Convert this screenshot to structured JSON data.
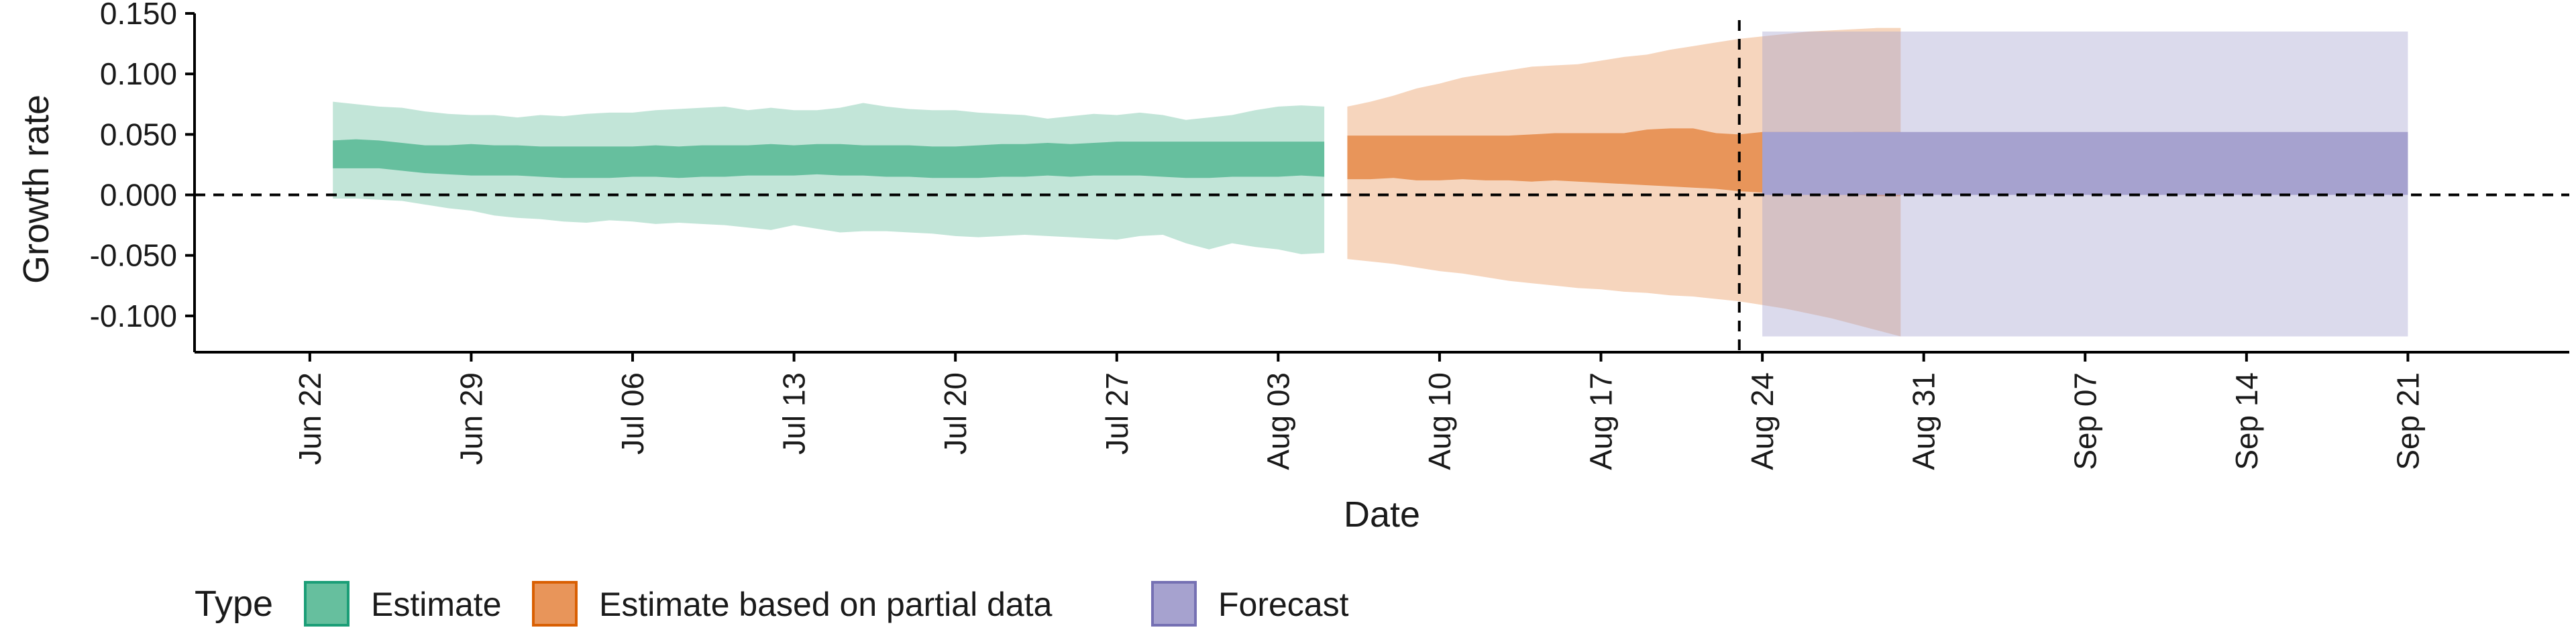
{
  "chart_data": {
    "type": "area",
    "xlabel": "Date",
    "ylabel": "Growth rate",
    "ylim": [
      -0.13,
      0.15
    ],
    "y_ticks": [
      "0.150",
      "0.100",
      "0.050",
      "0.000",
      "-0.050",
      "-0.100"
    ],
    "y_tick_values": [
      0.15,
      0.1,
      0.05,
      0.0,
      -0.05,
      -0.1
    ],
    "x_ticks": [
      "Jun 22",
      "Jun 29",
      "Jul 06",
      "Jul 13",
      "Jul 20",
      "Jul 27",
      "Aug 03",
      "Aug 10",
      "Aug 17",
      "Aug 24",
      "Aug 31",
      "Sep 07",
      "Sep 14",
      "Sep 21"
    ],
    "x_tick_dates": [
      "2020-06-22",
      "2020-06-29",
      "2020-07-06",
      "2020-07-13",
      "2020-07-20",
      "2020-07-27",
      "2020-08-03",
      "2020-08-10",
      "2020-08-17",
      "2020-08-24",
      "2020-08-31",
      "2020-09-07",
      "2020-09-14",
      "2020-09-21"
    ],
    "xlim": [
      "2020-06-17",
      "2020-09-28"
    ],
    "reference_line_y": 0,
    "forecast_start_line": "2020-08-23",
    "grid": false,
    "legend": {
      "position": "bottom-left",
      "title": "Type",
      "entries": [
        {
          "label": "Estimate",
          "color": "#66bf9e",
          "border": "#1b9e77"
        },
        {
          "label": "Estimate based on partial data",
          "color": "#e8955a",
          "border": "#d95f02"
        },
        {
          "label": "Forecast",
          "color": "#a6a2cf",
          "border": "#7570b3"
        }
      ]
    },
    "series": [
      {
        "name": "Estimate",
        "color": "#66bf9e",
        "start_date": "2020-06-23",
        "inner_upper": [
          0.045,
          0.046,
          0.045,
          0.043,
          0.041,
          0.041,
          0.042,
          0.041,
          0.041,
          0.04,
          0.04,
          0.04,
          0.04,
          0.04,
          0.041,
          0.04,
          0.041,
          0.041,
          0.041,
          0.042,
          0.041,
          0.042,
          0.042,
          0.041,
          0.041,
          0.041,
          0.04,
          0.04,
          0.041,
          0.042,
          0.042,
          0.043,
          0.042,
          0.043,
          0.044,
          0.044,
          0.044,
          0.044,
          0.044,
          0.044,
          0.044,
          0.044,
          0.044,
          0.044
        ],
        "inner_lower": [
          0.022,
          0.022,
          0.022,
          0.02,
          0.018,
          0.017,
          0.016,
          0.016,
          0.016,
          0.015,
          0.014,
          0.014,
          0.014,
          0.015,
          0.015,
          0.014,
          0.015,
          0.015,
          0.016,
          0.016,
          0.016,
          0.017,
          0.016,
          0.016,
          0.015,
          0.015,
          0.014,
          0.014,
          0.014,
          0.015,
          0.015,
          0.016,
          0.015,
          0.016,
          0.016,
          0.016,
          0.015,
          0.014,
          0.014,
          0.015,
          0.015,
          0.015,
          0.016,
          0.015
        ],
        "outer_upper": [
          0.077,
          0.075,
          0.073,
          0.072,
          0.069,
          0.067,
          0.066,
          0.066,
          0.064,
          0.066,
          0.065,
          0.067,
          0.068,
          0.068,
          0.07,
          0.071,
          0.072,
          0.073,
          0.07,
          0.072,
          0.07,
          0.07,
          0.072,
          0.076,
          0.073,
          0.071,
          0.07,
          0.07,
          0.068,
          0.067,
          0.066,
          0.063,
          0.065,
          0.067,
          0.066,
          0.068,
          0.066,
          0.062,
          0.064,
          0.066,
          0.07,
          0.073,
          0.074,
          0.073
        ],
        "outer_lower": [
          -0.003,
          -0.003,
          -0.004,
          -0.005,
          -0.008,
          -0.011,
          -0.013,
          -0.017,
          -0.019,
          -0.02,
          -0.022,
          -0.023,
          -0.021,
          -0.022,
          -0.024,
          -0.023,
          -0.024,
          -0.025,
          -0.027,
          -0.029,
          -0.025,
          -0.028,
          -0.031,
          -0.03,
          -0.03,
          -0.031,
          -0.032,
          -0.034,
          -0.035,
          -0.034,
          -0.033,
          -0.034,
          -0.035,
          -0.036,
          -0.037,
          -0.034,
          -0.033,
          -0.04,
          -0.045,
          -0.04,
          -0.043,
          -0.045,
          -0.049,
          -0.048
        ]
      },
      {
        "name": "Estimate based on partial data",
        "color": "#e8955a",
        "start_date": "2020-08-06",
        "inner_upper": [
          0.049,
          0.049,
          0.049,
          0.049,
          0.049,
          0.049,
          0.049,
          0.049,
          0.05,
          0.051,
          0.051,
          0.051,
          0.051,
          0.054,
          0.055,
          0.055,
          0.051,
          0.05,
          0.052,
          0.052,
          0.052,
          0.051,
          0.052,
          0.052,
          0.052
        ],
        "inner_lower": [
          0.013,
          0.013,
          0.014,
          0.012,
          0.012,
          0.013,
          0.012,
          0.012,
          0.011,
          0.012,
          0.011,
          0.01,
          0.009,
          0.008,
          0.007,
          0.006,
          0.005,
          0.003,
          0.002,
          0.001,
          0.001,
          0.0,
          0.0,
          -0.001,
          -0.001
        ],
        "outer_upper": [
          0.073,
          0.077,
          0.082,
          0.088,
          0.092,
          0.097,
          0.1,
          0.103,
          0.106,
          0.107,
          0.108,
          0.111,
          0.114,
          0.116,
          0.12,
          0.123,
          0.126,
          0.129,
          0.131,
          0.133,
          0.135,
          0.136,
          0.137,
          0.138,
          0.138
        ],
        "outer_lower": [
          -0.053,
          -0.055,
          -0.057,
          -0.06,
          -0.063,
          -0.065,
          -0.068,
          -0.071,
          -0.073,
          -0.075,
          -0.077,
          -0.078,
          -0.08,
          -0.081,
          -0.083,
          -0.084,
          -0.086,
          -0.088,
          -0.091,
          -0.094,
          -0.098,
          -0.102,
          -0.107,
          -0.112,
          -0.117
        ]
      },
      {
        "name": "Forecast",
        "color": "#a6a2cf",
        "start_date": "2020-08-24",
        "end_date": "2020-09-21",
        "inner_upper": 0.052,
        "inner_lower": 0.0,
        "outer_upper": 0.135,
        "outer_lower": -0.117
      }
    ]
  }
}
